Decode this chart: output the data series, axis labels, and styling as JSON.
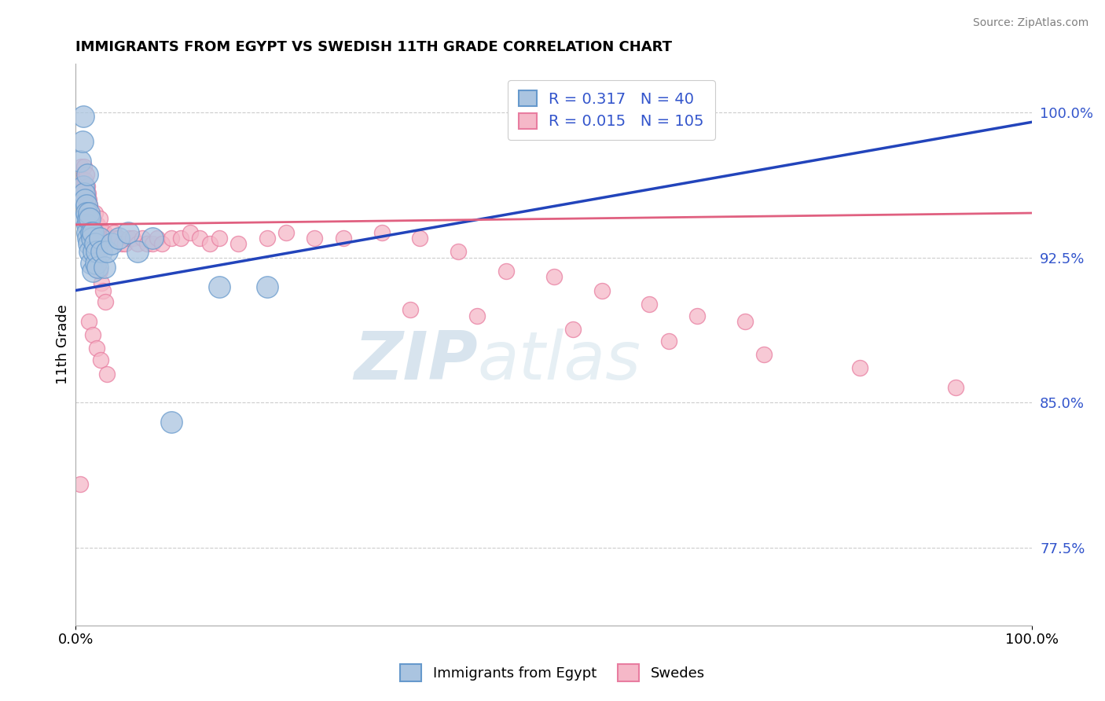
{
  "title": "IMMIGRANTS FROM EGYPT VS SWEDISH 11TH GRADE CORRELATION CHART",
  "source": "Source: ZipAtlas.com",
  "ylabel": "11th Grade",
  "xmin": 0.0,
  "xmax": 1.0,
  "ymin": 0.735,
  "ymax": 1.025,
  "yticks": [
    0.775,
    0.85,
    0.925,
    1.0
  ],
  "ytick_labels": [
    "77.5%",
    "85.0%",
    "92.5%",
    "100.0%"
  ],
  "xtick_labels": [
    "0.0%",
    "100.0%"
  ],
  "xticks": [
    0.0,
    1.0
  ],
  "blue_R": 0.317,
  "blue_N": 40,
  "pink_R": 0.015,
  "pink_N": 105,
  "blue_color": "#aac4e0",
  "blue_edge": "#6699cc",
  "pink_color": "#f5b8c8",
  "pink_edge": "#e87da0",
  "blue_line_color": "#2244bb",
  "pink_line_color": "#e06080",
  "legend_R_color": "#3355cc",
  "watermark_zip": "ZIP",
  "watermark_atlas": "atlas",
  "blue_line_x0": 0.0,
  "blue_line_y0": 0.908,
  "blue_line_x1": 1.0,
  "blue_line_y1": 0.995,
  "pink_line_x0": 0.0,
  "pink_line_y0": 0.942,
  "pink_line_x1": 1.0,
  "pink_line_y1": 0.948,
  "blue_x": [
    0.005,
    0.007,
    0.008,
    0.009,
    0.01,
    0.01,
    0.011,
    0.011,
    0.012,
    0.012,
    0.013,
    0.013,
    0.014,
    0.014,
    0.015,
    0.015,
    0.016,
    0.016,
    0.017,
    0.018,
    0.018,
    0.019,
    0.02,
    0.021,
    0.022,
    0.023,
    0.025,
    0.027,
    0.03,
    0.033,
    0.038,
    0.045,
    0.055,
    0.065,
    0.08,
    0.1,
    0.15,
    0.2,
    0.008,
    0.012
  ],
  "blue_y": [
    0.975,
    0.985,
    0.962,
    0.958,
    0.955,
    0.945,
    0.952,
    0.948,
    0.942,
    0.938,
    0.945,
    0.935,
    0.948,
    0.932,
    0.945,
    0.928,
    0.938,
    0.922,
    0.935,
    0.938,
    0.918,
    0.928,
    0.932,
    0.922,
    0.928,
    0.92,
    0.935,
    0.928,
    0.92,
    0.928,
    0.932,
    0.935,
    0.938,
    0.928,
    0.935,
    0.84,
    0.91,
    0.91,
    0.998,
    0.968
  ],
  "blue_sizes": [
    300,
    200,
    180,
    160,
    160,
    160,
    160,
    160,
    160,
    160,
    160,
    160,
    160,
    160,
    160,
    160,
    160,
    160,
    160,
    160,
    160,
    160,
    160,
    160,
    160,
    160,
    160,
    160,
    160,
    160,
    160,
    160,
    160,
    160,
    160,
    160,
    160,
    160,
    160,
    160
  ],
  "pink_x": [
    0.004,
    0.005,
    0.006,
    0.007,
    0.008,
    0.009,
    0.01,
    0.01,
    0.011,
    0.011,
    0.012,
    0.012,
    0.013,
    0.013,
    0.014,
    0.014,
    0.015,
    0.015,
    0.016,
    0.016,
    0.017,
    0.017,
    0.018,
    0.018,
    0.019,
    0.019,
    0.02,
    0.02,
    0.021,
    0.021,
    0.022,
    0.022,
    0.023,
    0.023,
    0.024,
    0.024,
    0.025,
    0.025,
    0.026,
    0.027,
    0.028,
    0.029,
    0.03,
    0.032,
    0.034,
    0.036,
    0.038,
    0.04,
    0.042,
    0.045,
    0.048,
    0.052,
    0.056,
    0.06,
    0.065,
    0.07,
    0.075,
    0.08,
    0.085,
    0.09,
    0.1,
    0.11,
    0.12,
    0.13,
    0.14,
    0.15,
    0.17,
    0.2,
    0.22,
    0.25,
    0.28,
    0.32,
    0.36,
    0.4,
    0.45,
    0.5,
    0.55,
    0.6,
    0.65,
    0.7,
    0.35,
    0.42,
    0.52,
    0.62,
    0.72,
    0.82,
    0.92,
    0.009,
    0.011,
    0.013,
    0.015,
    0.017,
    0.019,
    0.021,
    0.023,
    0.025,
    0.027,
    0.029,
    0.031,
    0.005,
    0.014,
    0.018,
    0.022,
    0.026,
    0.033
  ],
  "pink_y": [
    0.968,
    0.962,
    0.972,
    0.965,
    0.958,
    0.972,
    0.965,
    0.955,
    0.968,
    0.958,
    0.962,
    0.952,
    0.958,
    0.948,
    0.955,
    0.945,
    0.952,
    0.942,
    0.948,
    0.938,
    0.945,
    0.935,
    0.942,
    0.932,
    0.938,
    0.928,
    0.935,
    0.948,
    0.932,
    0.942,
    0.928,
    0.938,
    0.932,
    0.942,
    0.928,
    0.938,
    0.935,
    0.945,
    0.932,
    0.935,
    0.938,
    0.935,
    0.938,
    0.935,
    0.935,
    0.935,
    0.935,
    0.938,
    0.935,
    0.935,
    0.932,
    0.932,
    0.935,
    0.935,
    0.932,
    0.935,
    0.932,
    0.932,
    0.935,
    0.932,
    0.935,
    0.935,
    0.938,
    0.935,
    0.932,
    0.935,
    0.932,
    0.935,
    0.938,
    0.935,
    0.935,
    0.938,
    0.935,
    0.928,
    0.918,
    0.915,
    0.908,
    0.901,
    0.895,
    0.892,
    0.898,
    0.895,
    0.888,
    0.882,
    0.875,
    0.868,
    0.858,
    0.958,
    0.952,
    0.948,
    0.942,
    0.938,
    0.932,
    0.928,
    0.922,
    0.918,
    0.912,
    0.908,
    0.902,
    0.808,
    0.892,
    0.885,
    0.878,
    0.872,
    0.865
  ],
  "pink_sizes": [
    160,
    160,
    160,
    160,
    160,
    160,
    160,
    160,
    160,
    160,
    160,
    160,
    160,
    160,
    160,
    160,
    160,
    160,
    160,
    160,
    160,
    160,
    160,
    160,
    160,
    160,
    160,
    160,
    160,
    160,
    160,
    160,
    160,
    160,
    160,
    160,
    160,
    160,
    160,
    160,
    160,
    160,
    160,
    160,
    160,
    160,
    160,
    160,
    160,
    160,
    160,
    160,
    160,
    160,
    160,
    160,
    160,
    160,
    160,
    160,
    160,
    160,
    160,
    160,
    160,
    160,
    160,
    160,
    160,
    160,
    160,
    160,
    160,
    160,
    160,
    160,
    160,
    160,
    160,
    160,
    160,
    160,
    160,
    160,
    160,
    160,
    160,
    160,
    160,
    160,
    160,
    160,
    160,
    160,
    160,
    160,
    160,
    160,
    160,
    160,
    160,
    160,
    160,
    160,
    160,
    160
  ]
}
